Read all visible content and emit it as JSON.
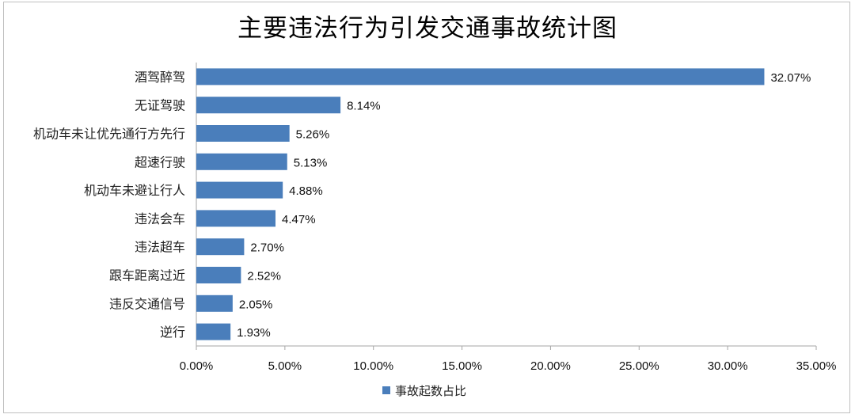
{
  "chart_data": {
    "type": "bar",
    "orientation": "horizontal",
    "title": "主要违法行为引发交通事故统计图",
    "categories": [
      "酒驾醉驾",
      "无证驾驶",
      "机动车未让优先通行方先行",
      "超速行驶",
      "机动车未避让行人",
      "违法会车",
      "违法超车",
      "跟车距离过近",
      "违反交通信号",
      "逆行"
    ],
    "series": [
      {
        "name": "事故起数占比",
        "values": [
          32.07,
          8.14,
          5.26,
          5.13,
          4.88,
          4.47,
          2.7,
          2.52,
          2.05,
          1.93
        ],
        "labels": [
          "32.07%",
          "8.14%",
          "5.26%",
          "5.13%",
          "4.88%",
          "4.47%",
          "2.70%",
          "2.52%",
          "2.05%",
          "1.93%"
        ]
      }
    ],
    "xlim": [
      0,
      35
    ],
    "xticks": [
      0,
      5,
      10,
      15,
      20,
      25,
      30,
      35
    ],
    "xtick_labels": [
      "0.00%",
      "5.00%",
      "10.00%",
      "15.00%",
      "20.00%",
      "25.00%",
      "30.00%",
      "35.00%"
    ],
    "grid": false,
    "legend_position": "bottom",
    "bar_color": "#4a7ebb"
  }
}
